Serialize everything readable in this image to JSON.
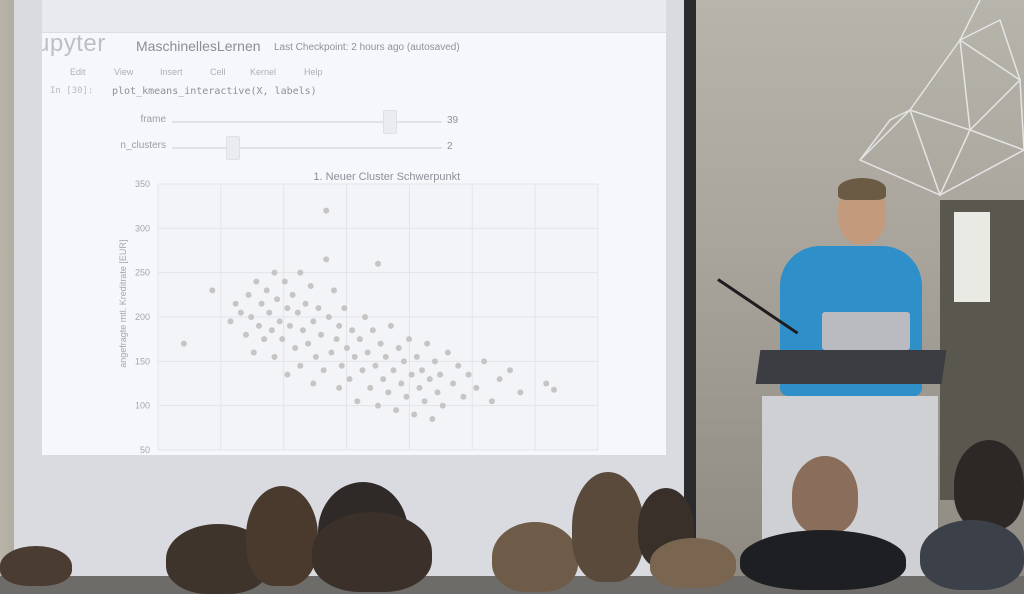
{
  "notebook": {
    "logo_text": "upyter",
    "name": "MaschinellesLernen",
    "checkpoint": "Last Checkpoint: 2 hours ago (autosaved)",
    "menu": [
      "Edit",
      "View",
      "Insert",
      "Cell",
      "Kernel",
      "Help"
    ],
    "cell_prompt": "In [30]:",
    "cell_code": "plot_kmeans_interactive(X, labels)"
  },
  "widgets": {
    "frame": {
      "label": "frame",
      "value": "39",
      "fraction": 0.78
    },
    "n_clusters": {
      "label": "n_clusters",
      "value": "2",
      "fraction": 0.2
    }
  },
  "chart_data": {
    "type": "scatter",
    "title": "1. Neuer Cluster Schwerpunkt",
    "ylabel": "angefragte mtl. Kreditrate [EUR]",
    "xlabel": "",
    "ylim": [
      50,
      350
    ],
    "yticks": [
      "350",
      "300",
      "250",
      "200",
      "150",
      "100",
      "50"
    ],
    "grid": true,
    "point_color": "#c7c4c4",
    "points": [
      [
        1.0,
        170
      ],
      [
        2.1,
        230
      ],
      [
        2.8,
        195
      ],
      [
        3.0,
        215
      ],
      [
        3.2,
        205
      ],
      [
        3.4,
        180
      ],
      [
        3.5,
        225
      ],
      [
        3.6,
        200
      ],
      [
        3.7,
        160
      ],
      [
        3.8,
        240
      ],
      [
        3.9,
        190
      ],
      [
        4.0,
        215
      ],
      [
        4.1,
        175
      ],
      [
        4.2,
        230
      ],
      [
        4.3,
        205
      ],
      [
        4.4,
        185
      ],
      [
        4.5,
        250
      ],
      [
        4.5,
        155
      ],
      [
        4.6,
        220
      ],
      [
        4.7,
        195
      ],
      [
        4.8,
        175
      ],
      [
        4.9,
        240
      ],
      [
        5.0,
        210
      ],
      [
        5.0,
        135
      ],
      [
        5.1,
        190
      ],
      [
        5.2,
        225
      ],
      [
        5.3,
        165
      ],
      [
        5.4,
        205
      ],
      [
        5.5,
        250
      ],
      [
        5.5,
        145
      ],
      [
        5.6,
        185
      ],
      [
        5.7,
        215
      ],
      [
        5.8,
        170
      ],
      [
        5.9,
        235
      ],
      [
        6.0,
        195
      ],
      [
        6.0,
        125
      ],
      [
        6.1,
        155
      ],
      [
        6.2,
        210
      ],
      [
        6.3,
        180
      ],
      [
        6.4,
        140
      ],
      [
        6.5,
        265
      ],
      [
        6.5,
        320
      ],
      [
        6.6,
        200
      ],
      [
        6.7,
        160
      ],
      [
        6.8,
        230
      ],
      [
        6.9,
        175
      ],
      [
        7.0,
        120
      ],
      [
        7.0,
        190
      ],
      [
        7.1,
        145
      ],
      [
        7.2,
        210
      ],
      [
        7.3,
        165
      ],
      [
        7.4,
        130
      ],
      [
        7.5,
        185
      ],
      [
        7.6,
        155
      ],
      [
        7.7,
        105
      ],
      [
        7.8,
        175
      ],
      [
        7.9,
        140
      ],
      [
        8.0,
        200
      ],
      [
        8.1,
        160
      ],
      [
        8.2,
        120
      ],
      [
        8.3,
        185
      ],
      [
        8.4,
        145
      ],
      [
        8.5,
        260
      ],
      [
        8.5,
        100
      ],
      [
        8.6,
        170
      ],
      [
        8.7,
        130
      ],
      [
        8.8,
        155
      ],
      [
        8.9,
        115
      ],
      [
        9.0,
        190
      ],
      [
        9.1,
        140
      ],
      [
        9.2,
        95
      ],
      [
        9.3,
        165
      ],
      [
        9.4,
        125
      ],
      [
        9.5,
        150
      ],
      [
        9.6,
        110
      ],
      [
        9.7,
        175
      ],
      [
        9.8,
        135
      ],
      [
        9.9,
        90
      ],
      [
        10.0,
        155
      ],
      [
        10.1,
        120
      ],
      [
        10.2,
        140
      ],
      [
        10.3,
        105
      ],
      [
        10.4,
        170
      ],
      [
        10.5,
        130
      ],
      [
        10.6,
        85
      ],
      [
        10.7,
        150
      ],
      [
        10.8,
        115
      ],
      [
        10.9,
        135
      ],
      [
        11.0,
        100
      ],
      [
        11.2,
        160
      ],
      [
        11.4,
        125
      ],
      [
        11.6,
        145
      ],
      [
        11.8,
        110
      ],
      [
        12.0,
        135
      ],
      [
        12.3,
        120
      ],
      [
        12.6,
        150
      ],
      [
        12.9,
        105
      ],
      [
        13.2,
        130
      ],
      [
        13.6,
        140
      ],
      [
        14.0,
        115
      ],
      [
        15.0,
        125
      ],
      [
        15.3,
        118
      ]
    ]
  },
  "scene": {
    "shirt_color": "#2e8fc9",
    "podium_color": "#cfd0d4"
  }
}
